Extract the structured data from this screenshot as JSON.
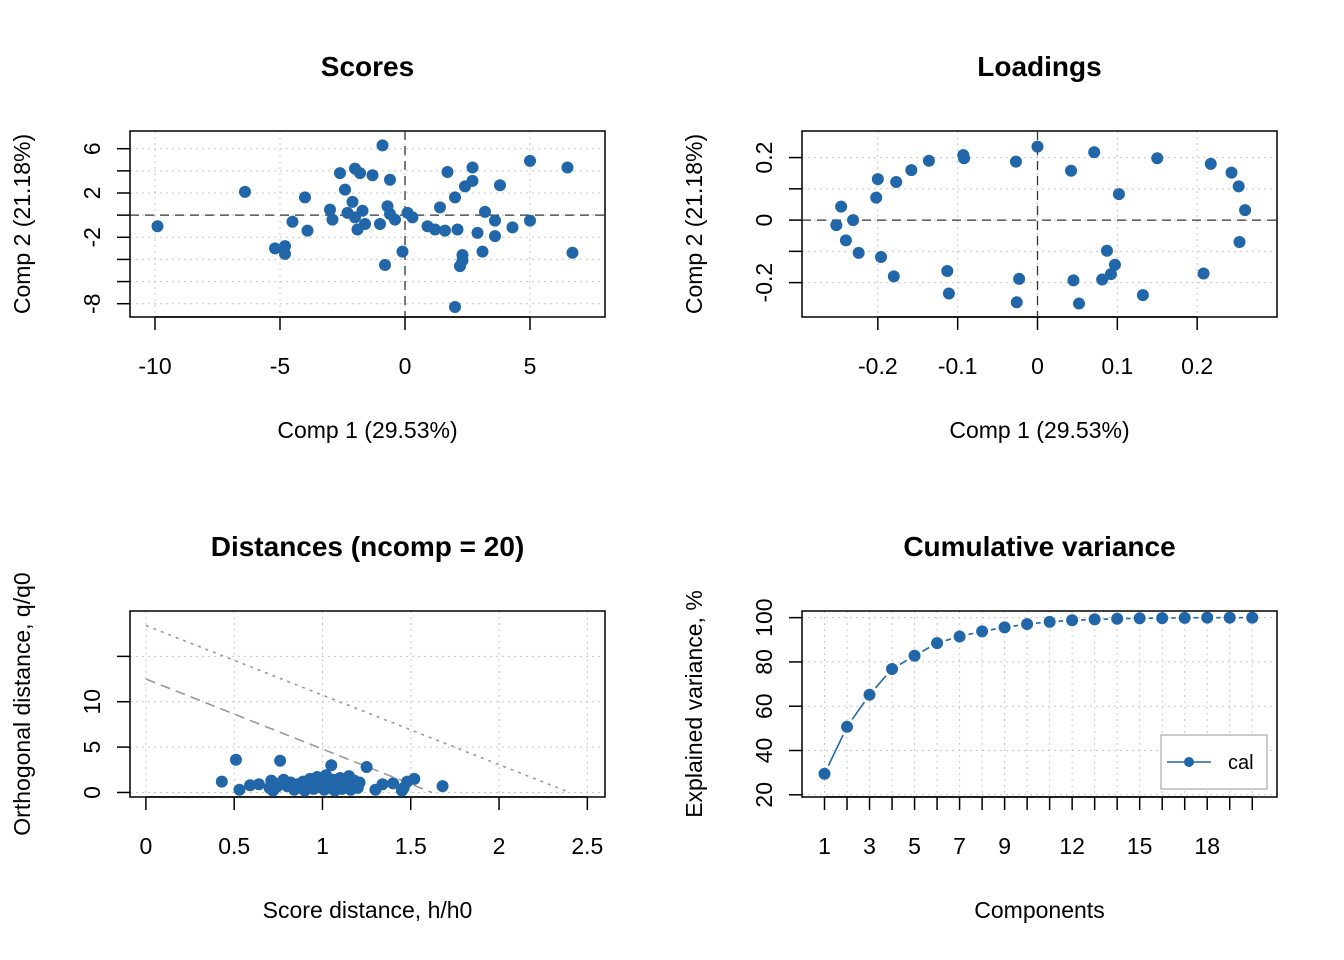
{
  "chart_data": [
    {
      "type": "scatter",
      "title": "Scores",
      "xlabel": "Comp 1 (29.53%)",
      "ylabel": "Comp 2 (21.18%)",
      "xlim": [
        -11,
        8
      ],
      "ylim": [
        -9.2,
        7.6
      ],
      "xticks": [
        -10,
        -5,
        0,
        5
      ],
      "yticks": [
        -8,
        -2,
        2,
        6
      ],
      "yticks_unlabeled": [
        -6,
        -4,
        0,
        4
      ],
      "grid": true,
      "color": "#2166a8",
      "points": [
        [
          -9.9,
          -1.0
        ],
        [
          -6.4,
          2.1
        ],
        [
          -5.2,
          -3.0
        ],
        [
          -4.8,
          -2.8
        ],
        [
          -4.8,
          -3.5
        ],
        [
          -4.5,
          -0.6
        ],
        [
          -4.0,
          1.6
        ],
        [
          -3.9,
          -1.4
        ],
        [
          -3.0,
          0.5
        ],
        [
          -2.9,
          -0.4
        ],
        [
          -2.6,
          3.8
        ],
        [
          -2.4,
          2.3
        ],
        [
          -2.3,
          0.2
        ],
        [
          -2.1,
          1.2
        ],
        [
          -2.0,
          -0.2
        ],
        [
          -2.0,
          4.2
        ],
        [
          -1.9,
          -1.3
        ],
        [
          -1.8,
          3.8
        ],
        [
          -1.7,
          0.4
        ],
        [
          -1.6,
          -0.8
        ],
        [
          -1.3,
          3.6
        ],
        [
          -1.0,
          -0.8
        ],
        [
          -0.9,
          6.3
        ],
        [
          -0.8,
          -4.5
        ],
        [
          -0.7,
          0.8
        ],
        [
          -0.6,
          3.2
        ],
        [
          -0.6,
          0.1
        ],
        [
          -0.4,
          -0.4
        ],
        [
          -0.1,
          -3.3
        ],
        [
          0.1,
          0.2
        ],
        [
          0.3,
          -0.2
        ],
        [
          0.9,
          -1.0
        ],
        [
          1.2,
          -1.3
        ],
        [
          1.4,
          0.7
        ],
        [
          1.6,
          -1.4
        ],
        [
          1.7,
          3.9
        ],
        [
          2.0,
          1.6
        ],
        [
          2.0,
          -8.3
        ],
        [
          2.1,
          -1.3
        ],
        [
          2.2,
          -4.6
        ],
        [
          2.3,
          -3.6
        ],
        [
          2.3,
          -4.1
        ],
        [
          2.4,
          2.6
        ],
        [
          2.7,
          4.3
        ],
        [
          2.7,
          3.1
        ],
        [
          2.9,
          -1.6
        ],
        [
          3.1,
          -3.3
        ],
        [
          3.2,
          0.3
        ],
        [
          3.6,
          -1.9
        ],
        [
          3.6,
          -0.5
        ],
        [
          3.8,
          2.7
        ],
        [
          4.3,
          -1.1
        ],
        [
          5.0,
          4.9
        ],
        [
          5.0,
          -0.5
        ],
        [
          6.5,
          4.3
        ],
        [
          6.7,
          -3.4
        ]
      ]
    },
    {
      "type": "scatter",
      "title": "Loadings",
      "xlabel": "Comp 1 (29.53%)",
      "ylabel": "Comp 2 (21.18%)",
      "xlim": [
        -0.295,
        0.3
      ],
      "ylim": [
        -0.31,
        0.285
      ],
      "xticks": [
        -0.2,
        -0.1,
        0.0,
        0.1,
        0.2
      ],
      "yticks": [
        -0.2,
        0.0,
        0.2
      ],
      "yticks_unlabeled": [
        -0.1,
        0.1
      ],
      "grid": true,
      "color": "#2166a8",
      "points": [
        [
          -0.252,
          -0.016
        ],
        [
          -0.246,
          0.043
        ],
        [
          -0.24,
          -0.065
        ],
        [
          -0.231,
          0.0
        ],
        [
          -0.224,
          -0.105
        ],
        [
          -0.202,
          0.072
        ],
        [
          -0.2,
          0.131
        ],
        [
          -0.196,
          -0.118
        ],
        [
          -0.18,
          -0.18
        ],
        [
          -0.177,
          0.122
        ],
        [
          -0.158,
          0.16
        ],
        [
          -0.136,
          0.19
        ],
        [
          -0.113,
          -0.163
        ],
        [
          -0.111,
          -0.235
        ],
        [
          -0.093,
          0.208
        ],
        [
          -0.092,
          0.198
        ],
        [
          -0.027,
          0.187
        ],
        [
          -0.026,
          -0.263
        ],
        [
          -0.023,
          -0.188
        ],
        [
          0.0,
          0.235
        ],
        [
          0.042,
          0.158
        ],
        [
          0.045,
          -0.193
        ],
        [
          0.052,
          -0.267
        ],
        [
          0.071,
          0.217
        ],
        [
          0.081,
          -0.19
        ],
        [
          0.087,
          -0.098
        ],
        [
          0.092,
          -0.173
        ],
        [
          0.097,
          -0.143
        ],
        [
          0.102,
          0.083
        ],
        [
          0.132,
          -0.24
        ],
        [
          0.15,
          0.198
        ],
        [
          0.208,
          -0.171
        ],
        [
          0.217,
          0.18
        ],
        [
          0.243,
          0.152
        ],
        [
          0.252,
          0.108
        ],
        [
          0.253,
          -0.07
        ],
        [
          0.26,
          0.032
        ]
      ]
    },
    {
      "type": "scatter",
      "title": "Distances (ncomp = 20)",
      "xlabel": "Score distance, h/h0",
      "ylabel": "Orthogonal distance, q/q0",
      "xlim": [
        -0.09,
        2.6
      ],
      "ylim": [
        -0.5,
        20
      ],
      "xticks": [
        0.0,
        0.5,
        1.0,
        1.5,
        2.0,
        2.5
      ],
      "yticks": [
        0,
        5,
        10
      ],
      "yticks_unlabeled": [
        15
      ],
      "grid": true,
      "color": "#2166a8",
      "limit_lines": [
        {
          "style": "dashed",
          "x0": 0.0,
          "y0": 12.5,
          "x1": 1.62,
          "y1": 0
        },
        {
          "style": "dotted",
          "x0": 0.0,
          "y0": 18.4,
          "x1": 2.4,
          "y1": 0
        }
      ],
      "points": [
        [
          0.43,
          1.2
        ],
        [
          0.51,
          3.6
        ],
        [
          0.53,
          0.3
        ],
        [
          0.59,
          0.8
        ],
        [
          0.64,
          0.9
        ],
        [
          0.7,
          0.5
        ],
        [
          0.71,
          1.3
        ],
        [
          0.72,
          0.2
        ],
        [
          0.73,
          1.0
        ],
        [
          0.74,
          0.6
        ],
        [
          0.76,
          3.5
        ],
        [
          0.78,
          1.4
        ],
        [
          0.8,
          0.7
        ],
        [
          0.82,
          1.1
        ],
        [
          0.84,
          0.3
        ],
        [
          0.86,
          0.9
        ],
        [
          0.88,
          0.5
        ],
        [
          0.89,
          1.2
        ],
        [
          0.9,
          0.2
        ],
        [
          0.92,
          0.8
        ],
        [
          0.93,
          1.5
        ],
        [
          0.95,
          0.4
        ],
        [
          0.96,
          1.0
        ],
        [
          0.97,
          1.7
        ],
        [
          0.98,
          0.6
        ],
        [
          1.0,
          1.3
        ],
        [
          1.01,
          0.3
        ],
        [
          1.02,
          1.9
        ],
        [
          1.03,
          0.9
        ],
        [
          1.04,
          0.5
        ],
        [
          1.05,
          3.0
        ],
        [
          1.06,
          1.4
        ],
        [
          1.07,
          0.2
        ],
        [
          1.08,
          1.1
        ],
        [
          1.09,
          0.7
        ],
        [
          1.1,
          1.6
        ],
        [
          1.11,
          0.4
        ],
        [
          1.13,
          1.0
        ],
        [
          1.15,
          1.8
        ],
        [
          1.16,
          0.3
        ],
        [
          1.17,
          0.9
        ],
        [
          1.18,
          1.3
        ],
        [
          1.2,
          0.5
        ],
        [
          1.21,
          1.1
        ],
        [
          1.25,
          2.8
        ],
        [
          1.3,
          0.3
        ],
        [
          1.34,
          0.9
        ],
        [
          1.4,
          1.0
        ],
        [
          1.45,
          0.2
        ],
        [
          1.46,
          0.5
        ],
        [
          1.48,
          1.2
        ],
        [
          1.52,
          1.5
        ],
        [
          1.68,
          0.7
        ]
      ]
    },
    {
      "type": "line",
      "title": "Cumulative variance",
      "xlabel": "Components",
      "ylabel": "Explained variance, %",
      "xlim": [
        0.0,
        21.1
      ],
      "ylim": [
        19,
        103
      ],
      "xticks": [
        1,
        3,
        5,
        7,
        9,
        12,
        15,
        18
      ],
      "xticks_unlabeled": [
        2,
        4,
        6,
        8,
        10,
        11,
        13,
        14,
        16,
        17,
        19,
        20
      ],
      "yticks": [
        20,
        40,
        60,
        80,
        100
      ],
      "grid": true,
      "color": "#2166a8",
      "legend": {
        "position": "bottom-right",
        "entries": [
          "cal"
        ]
      },
      "x": [
        1,
        2,
        3,
        4,
        5,
        6,
        7,
        8,
        9,
        10,
        11,
        12,
        13,
        14,
        15,
        16,
        17,
        18,
        19,
        20
      ],
      "values": [
        29.5,
        50.7,
        65.2,
        76.8,
        82.8,
        88.5,
        91.5,
        93.8,
        95.6,
        97.1,
        98.1,
        98.8,
        99.2,
        99.5,
        99.7,
        99.8,
        99.9,
        100.0,
        100.0,
        100.0
      ]
    }
  ]
}
